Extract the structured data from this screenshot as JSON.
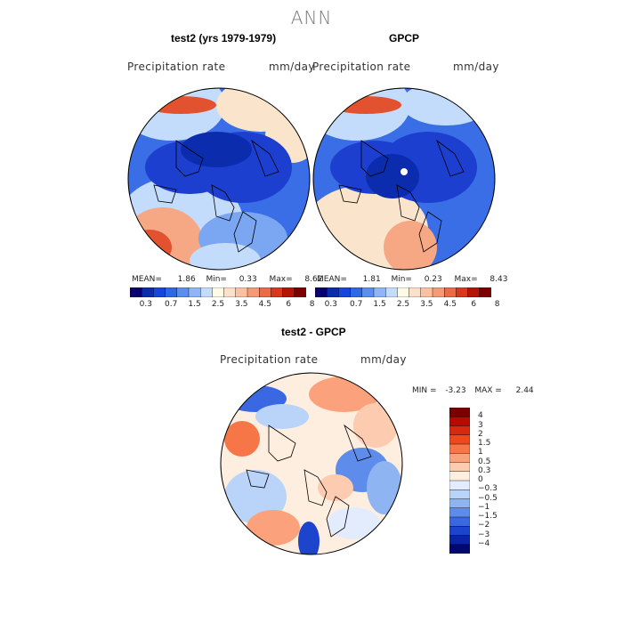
{
  "title": "ANN",
  "panels": [
    {
      "title": "test2 (yrs 1979-1979)",
      "variable": "Precipitation rate",
      "units": "mm/day",
      "stats": {
        "mean_label": "MEAN=",
        "mean": "1.86",
        "min_label": "Min=",
        "min": "0.33",
        "max_label": "Max=",
        "max": "8.62"
      }
    },
    {
      "title": "GPCP",
      "variable": "Precipitation rate",
      "units": "mm/day",
      "stats": {
        "mean_label": "MEAN=",
        "mean": "1.81",
        "min_label": "Min=",
        "min": "0.23",
        "max_label": "Max=",
        "max": "8.43"
      }
    },
    {
      "title": "test2 - GPCP",
      "variable": "Precipitation rate",
      "units": "mm/day",
      "stats": {
        "min_label": "MIN =",
        "min": "-3.23",
        "max_label": "MAX =",
        "max": "2.44"
      }
    }
  ],
  "colorbar_abs": {
    "colors": [
      "#08006e",
      "#0c2cae",
      "#1846dc",
      "#2f68e6",
      "#5a8ff0",
      "#8fb5f6",
      "#c4dcfb",
      "#fdfbe6",
      "#fde0c8",
      "#fbc0a0",
      "#f59a78",
      "#ec6a48",
      "#d8381e",
      "#b41408",
      "#7a0000"
    ],
    "labels": [
      "0.3",
      "0.7",
      "1.5",
      "2.5",
      "3.5",
      "4.5",
      "6",
      "8"
    ]
  },
  "colorbar_diff": {
    "colors": [
      "#7a0000",
      "#b80a04",
      "#d62a10",
      "#ec4a1c",
      "#f67648",
      "#fba27c",
      "#fdcbb0",
      "#fdeee0",
      "#e2ecfc",
      "#bad3f8",
      "#8eb4f2",
      "#5e8ceb",
      "#3a68e2",
      "#1c44cc",
      "#0a24a6",
      "#02086e"
    ],
    "labels": [
      "4",
      "3",
      "2",
      "1.5",
      "1",
      "0.5",
      "0.3",
      "0",
      "-0.3",
      "-0.5",
      "-1",
      "-1.5",
      "-2",
      "-3",
      "-4"
    ]
  },
  "map_colors": {
    "deep_blue": "#1c3fcf",
    "mid_blue": "#3a6ee6",
    "light_blue": "#7aa6f2",
    "pale_blue": "#c4dcfb",
    "cream": "#fbe4cc",
    "salmon": "#f6a783",
    "red": "#e2522e",
    "coast": "#000000"
  }
}
